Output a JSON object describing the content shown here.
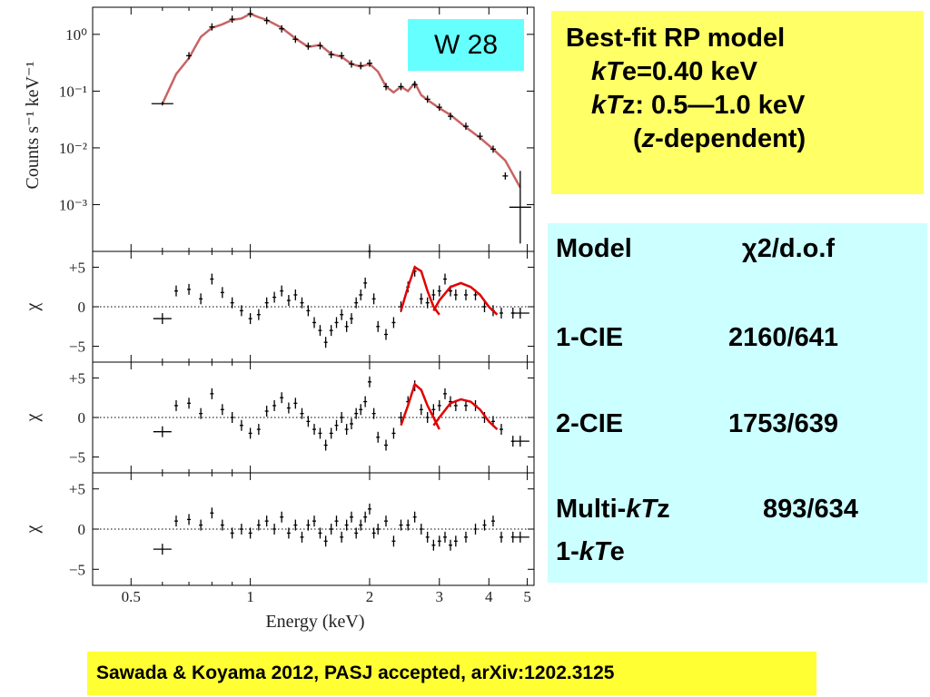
{
  "figure": {
    "xlabel": "Energy (keV)",
    "x_ticks": [
      "0.5",
      "1",
      "2",
      "3",
      "4",
      "5"
    ],
    "top_ylabel": "Counts s⁻¹ keV⁻¹",
    "top_yticks": [
      "10⁰",
      "10⁻¹",
      "10⁻²",
      "10⁻³"
    ],
    "resid_ylabel": "χ",
    "resid_yticks": [
      "+5",
      "0",
      "−5"
    ],
    "colors": {
      "model_line": "#c86464",
      "gaussian_line": "#e00000",
      "data": "#000000"
    }
  },
  "chart_data": [
    {
      "type": "line",
      "panel": "spectrum",
      "xlabel": "Energy (keV)",
      "ylabel": "Counts s⁻¹ keV⁻¹",
      "x_scale": "log",
      "y_scale": "log",
      "xlim": [
        0.4,
        5.2
      ],
      "ylim": [
        0.00015,
        3
      ],
      "series": [
        {
          "kind": "model",
          "x": [
            0.6,
            0.65,
            0.7,
            0.75,
            0.8,
            0.85,
            0.9,
            0.95,
            1.0,
            1.05,
            1.1,
            1.2,
            1.3,
            1.4,
            1.5,
            1.6,
            1.7,
            1.8,
            1.9,
            2.0,
            2.1,
            2.2,
            2.3,
            2.4,
            2.5,
            2.6,
            2.7,
            2.8,
            3.0,
            3.2,
            3.5,
            3.8,
            4.1,
            4.4,
            4.8
          ],
          "y": [
            0.06,
            0.2,
            0.38,
            0.9,
            1.3,
            1.5,
            1.8,
            1.9,
            2.3,
            2.0,
            1.8,
            1.3,
            0.85,
            0.6,
            0.65,
            0.45,
            0.4,
            0.3,
            0.27,
            0.3,
            0.22,
            0.12,
            0.095,
            0.12,
            0.1,
            0.14,
            0.085,
            0.07,
            0.05,
            0.038,
            0.023,
            0.015,
            0.0095,
            0.006,
            0.002
          ]
        },
        {
          "kind": "data",
          "x": [
            0.6,
            0.7,
            0.8,
            0.9,
            1.0,
            1.1,
            1.2,
            1.3,
            1.4,
            1.5,
            1.6,
            1.7,
            1.8,
            1.9,
            2.0,
            2.2,
            2.4,
            2.6,
            2.8,
            3.0,
            3.2,
            3.5,
            3.8,
            4.1,
            4.4,
            4.8
          ],
          "y": [
            0.06,
            0.42,
            1.35,
            1.85,
            2.3,
            1.75,
            1.25,
            0.82,
            0.62,
            0.63,
            0.44,
            0.42,
            0.3,
            0.28,
            0.31,
            0.12,
            0.12,
            0.13,
            0.072,
            0.052,
            0.036,
            0.024,
            0.016,
            0.0095,
            0.0032,
            0.0009
          ]
        }
      ]
    },
    {
      "type": "scatter",
      "panel": "residual-1CIE",
      "ylabel": "χ",
      "x_scale": "log",
      "ylim": [
        -7,
        7
      ],
      "x": [
        0.6,
        0.65,
        0.7,
        0.75,
        0.8,
        0.85,
        0.9,
        0.95,
        1.0,
        1.05,
        1.1,
        1.15,
        1.2,
        1.25,
        1.3,
        1.35,
        1.4,
        1.45,
        1.5,
        1.55,
        1.6,
        1.65,
        1.7,
        1.75,
        1.8,
        1.85,
        1.9,
        1.95,
        2.0,
        2.05,
        2.1,
        2.2,
        2.3,
        2.4,
        2.5,
        2.6,
        2.7,
        2.8,
        2.9,
        3.0,
        3.1,
        3.2,
        3.3,
        3.5,
        3.7,
        3.9,
        4.1,
        4.3,
        4.6,
        4.8
      ],
      "y": [
        -1.5,
        2.0,
        2.2,
        1.0,
        3.5,
        1.8,
        0.5,
        -0.5,
        -1.5,
        -1.0,
        0.5,
        1.2,
        2.0,
        0.8,
        1.5,
        0.5,
        -0.5,
        -2.0,
        -3.0,
        -4.5,
        -3.0,
        -2.0,
        -1.0,
        -2.5,
        -1.5,
        0.5,
        1.5,
        3.0,
        7.0,
        1.0,
        -2.5,
        -3.5,
        -2.0,
        0.0,
        2.5,
        4.5,
        1.0,
        0.5,
        1.5,
        2.0,
        3.5,
        2.0,
        1.5,
        1.5,
        1.5,
        0.0,
        -0.5,
        -0.8,
        -0.8,
        -0.8
      ],
      "fit_lines": [
        {
          "x": [
            2.4,
            2.5,
            2.6,
            2.7,
            2.8,
            2.9,
            3.0
          ],
          "y": [
            -0.5,
            2.5,
            5.0,
            4.5,
            2.0,
            0.0,
            -1.0
          ]
        },
        {
          "x": [
            2.9,
            3.0,
            3.2,
            3.4,
            3.6,
            3.8,
            4.0,
            4.2
          ],
          "y": [
            -0.5,
            0.8,
            2.5,
            3.0,
            2.5,
            1.5,
            0.0,
            -1.0
          ]
        }
      ]
    },
    {
      "type": "scatter",
      "panel": "residual-2CIE",
      "ylabel": "χ",
      "x_scale": "log",
      "ylim": [
        -7,
        7
      ],
      "x": [
        0.6,
        0.65,
        0.7,
        0.75,
        0.8,
        0.85,
        0.9,
        0.95,
        1.0,
        1.05,
        1.1,
        1.15,
        1.2,
        1.25,
        1.3,
        1.35,
        1.4,
        1.45,
        1.5,
        1.55,
        1.6,
        1.65,
        1.7,
        1.75,
        1.8,
        1.85,
        1.9,
        1.95,
        2.0,
        2.05,
        2.1,
        2.2,
        2.3,
        2.4,
        2.5,
        2.6,
        2.7,
        2.8,
        2.9,
        3.0,
        3.1,
        3.2,
        3.3,
        3.5,
        3.7,
        3.9,
        4.1,
        4.3,
        4.6,
        4.8
      ],
      "y": [
        -1.8,
        1.5,
        1.8,
        0.5,
        3.0,
        1.0,
        0.0,
        -1.0,
        -2.0,
        -1.5,
        0.8,
        1.5,
        2.5,
        1.2,
        1.8,
        0.5,
        -0.5,
        -1.5,
        -2.0,
        -3.5,
        -2.0,
        -1.0,
        0.0,
        -1.5,
        -0.8,
        0.5,
        1.0,
        2.0,
        4.5,
        0.5,
        -2.5,
        -3.5,
        -2.0,
        0.0,
        2.0,
        4.0,
        1.0,
        0.0,
        1.0,
        1.5,
        3.0,
        2.0,
        1.5,
        1.5,
        1.5,
        0.0,
        -0.5,
        -1.5,
        -3.0,
        -3.0
      ],
      "fit_lines": [
        {
          "x": [
            2.4,
            2.5,
            2.6,
            2.7,
            2.8,
            2.9,
            3.0
          ],
          "y": [
            -1.0,
            1.5,
            4.2,
            3.5,
            1.5,
            0.0,
            -1.5
          ]
        },
        {
          "x": [
            2.9,
            3.0,
            3.2,
            3.4,
            3.6,
            3.8,
            4.0,
            4.2
          ],
          "y": [
            -1.0,
            0.0,
            1.8,
            2.3,
            2.0,
            1.0,
            -0.5,
            -1.5
          ]
        }
      ]
    },
    {
      "type": "scatter",
      "panel": "residual-Multi-kTz",
      "ylabel": "χ",
      "x_scale": "log",
      "ylim": [
        -7,
        7
      ],
      "x": [
        0.6,
        0.65,
        0.7,
        0.75,
        0.8,
        0.85,
        0.9,
        0.95,
        1.0,
        1.05,
        1.1,
        1.15,
        1.2,
        1.25,
        1.3,
        1.35,
        1.4,
        1.45,
        1.5,
        1.55,
        1.6,
        1.65,
        1.7,
        1.75,
        1.8,
        1.85,
        1.9,
        1.95,
        2.0,
        2.05,
        2.1,
        2.2,
        2.3,
        2.4,
        2.5,
        2.6,
        2.7,
        2.8,
        2.9,
        3.0,
        3.1,
        3.2,
        3.3,
        3.5,
        3.7,
        3.9,
        4.1,
        4.3,
        4.6,
        4.8
      ],
      "y": [
        -2.5,
        1.0,
        1.2,
        0.5,
        2.0,
        0.5,
        -0.5,
        0.0,
        -0.5,
        0.5,
        1.0,
        0.0,
        1.5,
        -0.5,
        0.5,
        -1.0,
        0.5,
        1.0,
        -0.5,
        -1.5,
        0.0,
        1.0,
        -1.0,
        0.5,
        1.5,
        -0.5,
        0.5,
        1.5,
        2.5,
        -0.5,
        0.0,
        1.0,
        -1.5,
        0.5,
        0.5,
        1.5,
        0.0,
        -1.0,
        -2.0,
        -1.5,
        -1.0,
        -2.0,
        -1.5,
        -1.0,
        0.0,
        0.5,
        1.0,
        -1.0,
        -1.0,
        -1.0
      ]
    }
  ],
  "target_label": "W 28",
  "best_fit": {
    "line1": "Best-fit  RP model",
    "kTe_k": "kT",
    "kTe_rest": "e=0.40 keV",
    "kTz_k": "kT",
    "kTz_rest": "z:  0.5—1.0 keV",
    "zdep_open": "(",
    "zdep_z": "z",
    "zdep_rest": "-dependent)"
  },
  "table": {
    "header_model": "Model",
    "header_chi": "χ2/d.o.f",
    "rows": [
      {
        "model": "1-CIE",
        "value": "2160/641"
      },
      {
        "model": "2-CIE",
        "value": "1753/639"
      }
    ],
    "multi_prefix": "Multi-",
    "multi_k": "kT",
    "multi_z": "z",
    "multi_value": "893/634",
    "onekte_prefix": "1-",
    "onekte_k": "kT",
    "onekte_e": "e"
  },
  "citation": "Sawada & Koyama 2012, PASJ accepted, arXiv:1202.3125"
}
